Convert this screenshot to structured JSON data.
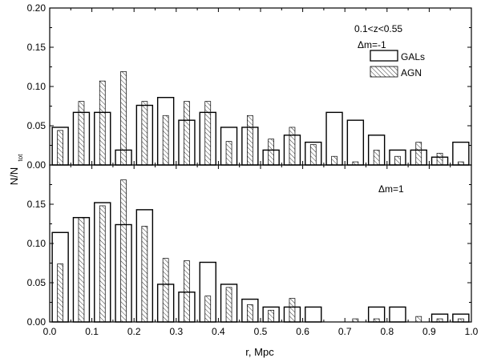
{
  "chart_data": {
    "type": "bar",
    "xlabel": "r, Mpc",
    "ylabel_main": "N/N",
    "ylabel_sub": "tot",
    "xlim": [
      0.0,
      1.0
    ],
    "x_ticks": [
      "0.0",
      "0.1",
      "0.2",
      "0.3",
      "0.4",
      "0.5",
      "0.6",
      "0.7",
      "0.8",
      "0.9",
      "1.0"
    ],
    "x_centers": [
      0.025,
      0.075,
      0.125,
      0.175,
      0.225,
      0.275,
      0.325,
      0.375,
      0.425,
      0.475,
      0.525,
      0.575,
      0.625,
      0.675,
      0.725,
      0.775,
      0.825,
      0.875,
      0.925,
      0.975
    ],
    "panels": [
      {
        "name": "top",
        "ylim": [
          0.0,
          0.2
        ],
        "y_ticks": [
          "0.00",
          "0.05",
          "0.10",
          "0.15",
          "0.20"
        ],
        "annotations": [
          "0.1<z<0.55",
          "Δm=-1"
        ],
        "legend": [
          {
            "label": "GALs",
            "style": "open"
          },
          {
            "label": "AGN",
            "style": "hatched"
          }
        ],
        "series": [
          {
            "name": "GALs",
            "values": [
              0.048,
              0.067,
              0.067,
              0.019,
              0.076,
              0.086,
              0.057,
              0.067,
              0.048,
              0.048,
              0.019,
              0.038,
              0.029,
              0.067,
              0.057,
              0.038,
              0.019,
              0.019,
              0.01,
              0.029
            ]
          },
          {
            "name": "AGN",
            "values": [
              0.044,
              0.081,
              0.107,
              0.119,
              0.081,
              0.063,
              0.081,
              0.081,
              0.03,
              0.063,
              0.033,
              0.048,
              0.026,
              0.011,
              0.004,
              0.019,
              0.011,
              0.029,
              0.015,
              0.004
            ]
          }
        ]
      },
      {
        "name": "bottom",
        "ylim": [
          0.0,
          0.2
        ],
        "y_ticks": [
          "0.00",
          "0.05",
          "0.10",
          "0.15"
        ],
        "annotations": [
          "Δm=1"
        ],
        "series": [
          {
            "name": "GALs",
            "values": [
              0.114,
              0.133,
              0.152,
              0.124,
              0.143,
              0.048,
              0.038,
              0.076,
              0.048,
              0.029,
              0.019,
              0.019,
              0.019,
              0.0,
              0.0,
              0.019,
              0.019,
              0.0,
              0.01,
              0.01
            ]
          },
          {
            "name": "AGN",
            "values": [
              0.074,
              0.133,
              0.148,
              0.181,
              0.122,
              0.081,
              0.078,
              0.033,
              0.044,
              0.022,
              0.015,
              0.03,
              0.0,
              0.0,
              0.004,
              0.004,
              0.0,
              0.007,
              0.004,
              0.004
            ]
          }
        ]
      }
    ]
  }
}
